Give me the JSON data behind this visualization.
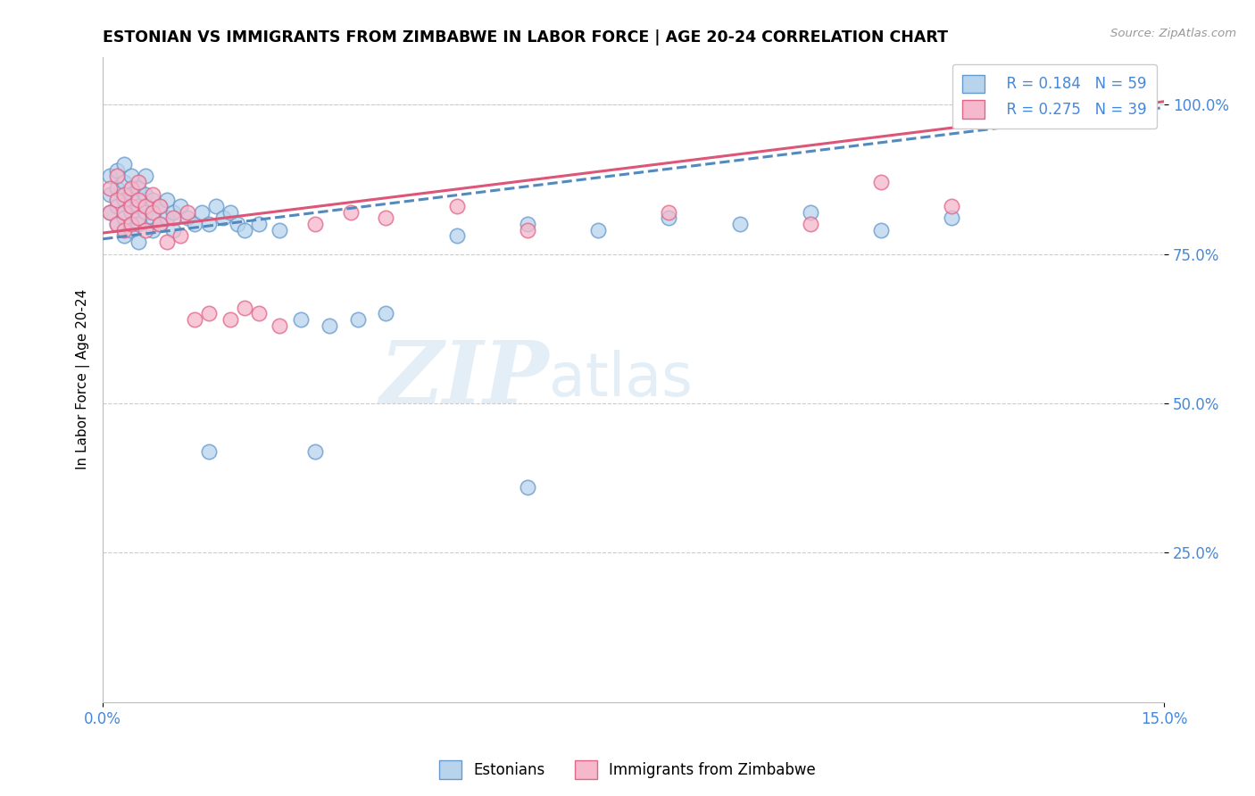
{
  "title": "ESTONIAN VS IMMIGRANTS FROM ZIMBABWE IN LABOR FORCE | AGE 20-24 CORRELATION CHART",
  "source": "Source: ZipAtlas.com",
  "ylabel_label": "In Labor Force | Age 20-24",
  "xlim": [
    0.0,
    0.15
  ],
  "ylim": [
    0.0,
    1.08
  ],
  "legend_r1": "R = 0.184",
  "legend_n1": "N = 59",
  "legend_r2": "R = 0.275",
  "legend_n2": "N = 39",
  "color_estonian_fill": "#b8d4ec",
  "color_estonian_edge": "#6699cc",
  "color_zimbabwe_fill": "#f5b8cc",
  "color_zimbabwe_edge": "#e06688",
  "color_line_estonian": "#5588bb",
  "color_line_zimbabwe": "#dd5577",
  "watermark_zip": "ZIP",
  "watermark_atlas": "atlas",
  "grid_color": "#cccccc",
  "tick_color": "#4488dd",
  "estonian_x": [
    0.001,
    0.001,
    0.001,
    0.002,
    0.002,
    0.002,
    0.002,
    0.003,
    0.003,
    0.003,
    0.003,
    0.003,
    0.004,
    0.004,
    0.004,
    0.004,
    0.005,
    0.005,
    0.005,
    0.005,
    0.006,
    0.006,
    0.006,
    0.007,
    0.007,
    0.007,
    0.008,
    0.008,
    0.009,
    0.009,
    0.01,
    0.01,
    0.011,
    0.012,
    0.013,
    0.014,
    0.015,
    0.016,
    0.017,
    0.018,
    0.019,
    0.02,
    0.022,
    0.025,
    0.028,
    0.032,
    0.036,
    0.04,
    0.05,
    0.06,
    0.07,
    0.08,
    0.09,
    0.1,
    0.11,
    0.12,
    0.015,
    0.03,
    0.06
  ],
  "estonian_y": [
    0.82,
    0.85,
    0.88,
    0.8,
    0.83,
    0.86,
    0.89,
    0.81,
    0.84,
    0.87,
    0.9,
    0.78,
    0.82,
    0.85,
    0.88,
    0.79,
    0.83,
    0.86,
    0.8,
    0.77,
    0.82,
    0.85,
    0.88,
    0.81,
    0.84,
    0.79,
    0.83,
    0.8,
    0.84,
    0.81,
    0.82,
    0.79,
    0.83,
    0.81,
    0.8,
    0.82,
    0.8,
    0.83,
    0.81,
    0.82,
    0.8,
    0.79,
    0.8,
    0.79,
    0.64,
    0.63,
    0.64,
    0.65,
    0.78,
    0.8,
    0.79,
    0.81,
    0.8,
    0.82,
    0.79,
    0.81,
    0.42,
    0.42,
    0.36
  ],
  "zimbabwe_x": [
    0.001,
    0.001,
    0.002,
    0.002,
    0.002,
    0.003,
    0.003,
    0.003,
    0.004,
    0.004,
    0.004,
    0.005,
    0.005,
    0.005,
    0.006,
    0.006,
    0.007,
    0.007,
    0.008,
    0.008,
    0.009,
    0.01,
    0.011,
    0.012,
    0.013,
    0.015,
    0.018,
    0.02,
    0.022,
    0.025,
    0.03,
    0.035,
    0.04,
    0.05,
    0.06,
    0.08,
    0.1,
    0.11,
    0.12
  ],
  "zimbabwe_y": [
    0.82,
    0.86,
    0.8,
    0.84,
    0.88,
    0.82,
    0.85,
    0.79,
    0.83,
    0.86,
    0.8,
    0.84,
    0.87,
    0.81,
    0.83,
    0.79,
    0.82,
    0.85,
    0.8,
    0.83,
    0.77,
    0.81,
    0.78,
    0.82,
    0.64,
    0.65,
    0.64,
    0.66,
    0.65,
    0.63,
    0.8,
    0.82,
    0.81,
    0.83,
    0.79,
    0.82,
    0.8,
    0.87,
    0.83
  ]
}
